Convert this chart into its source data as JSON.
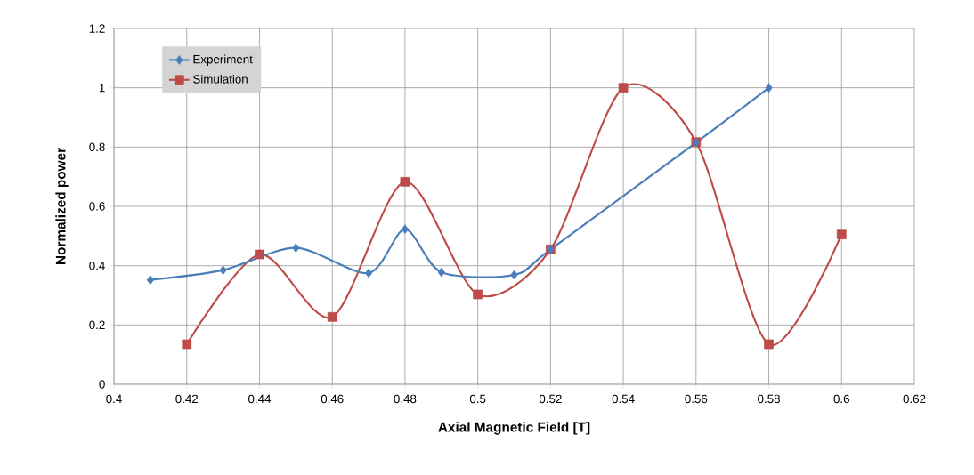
{
  "chart_data": {
    "type": "line",
    "xlabel": "Axial Magnetic Field [T]",
    "ylabel": "Normalized power",
    "xlim": [
      0.4,
      0.62
    ],
    "xticks": [
      0.4,
      0.42,
      0.44,
      0.46,
      0.48,
      0.5,
      0.52,
      0.54,
      0.56,
      0.58,
      0.6,
      0.62
    ],
    "ylim": [
      0,
      1.2
    ],
    "yticks": [
      0,
      0.2,
      0.4,
      0.6,
      0.8,
      1,
      1.2
    ],
    "grid": true,
    "legend": "top left",
    "line_style": "solid",
    "series": [
      {
        "name": "Experiment",
        "color": "#4a7ebb",
        "marker": "diamond",
        "x": [
          0.41,
          0.43,
          0.45,
          0.47,
          0.48,
          0.49,
          0.51,
          0.52,
          0.56,
          0.58
        ],
        "values": [
          0.352,
          0.385,
          0.46,
          0.375,
          0.523,
          0.378,
          0.369,
          0.455,
          0.815,
          1.0
        ]
      },
      {
        "name": "Simulation",
        "color": "#be4b48",
        "marker": "square",
        "x": [
          0.42,
          0.44,
          0.46,
          0.48,
          0.5,
          0.52,
          0.54,
          0.56,
          0.58,
          0.6
        ],
        "values": [
          0.135,
          0.438,
          0.227,
          0.683,
          0.303,
          0.455,
          1.0,
          0.817,
          0.135,
          0.505
        ]
      }
    ]
  }
}
